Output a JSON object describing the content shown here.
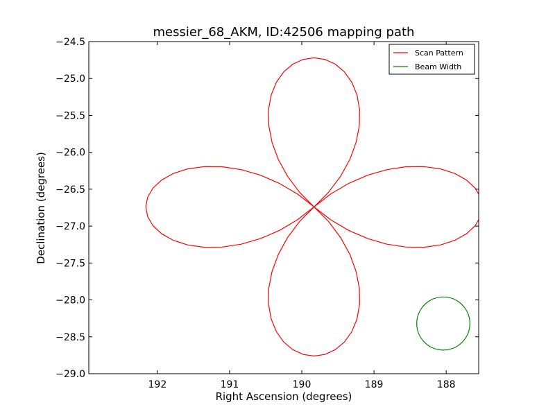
{
  "chart_data": {
    "type": "line",
    "title": "messier_68_AKM, ID:42506 mapping path",
    "xlabel": "Right Ascension (degrees)",
    "ylabel": "Declination (degrees)",
    "xlim": [
      192.95,
      187.55
    ],
    "ylim": [
      -29.0,
      -24.5
    ],
    "x_inverted": true,
    "xticks": [
      192,
      191,
      190,
      189,
      188
    ],
    "xtick_labels": [
      "192",
      "191",
      "190",
      "189",
      "188"
    ],
    "yticks": [
      -24.5,
      -25.0,
      -25.5,
      -26.0,
      -26.5,
      -27.0,
      -27.5,
      -28.0,
      -28.5,
      -29.0
    ],
    "ytick_labels": [
      "−24.5",
      "−25.0",
      "−25.5",
      "−26.0",
      "−26.5",
      "−27.0",
      "−27.5",
      "−28.0",
      "−28.5",
      "−29.0"
    ],
    "grid": false,
    "legend_position": "top-right",
    "series": [
      {
        "name": "Scan Pattern",
        "color": "#ff0000",
        "shape": "four-petal rose",
        "center": [
          189.83,
          -26.74
        ],
        "petal_reach_ra": 2.33,
        "petal_reach_dec": 2.02,
        "extent": {
          "ra_max": 192.14,
          "ra_min": 187.52,
          "dec_max": -24.74,
          "dec_min": -28.76
        },
        "gap_at_ra": 192.14
      },
      {
        "name": "Beam Width",
        "color": "#008000",
        "shape": "circle",
        "center": [
          188.04,
          -28.32
        ],
        "radius_dec": 0.36
      }
    ]
  }
}
